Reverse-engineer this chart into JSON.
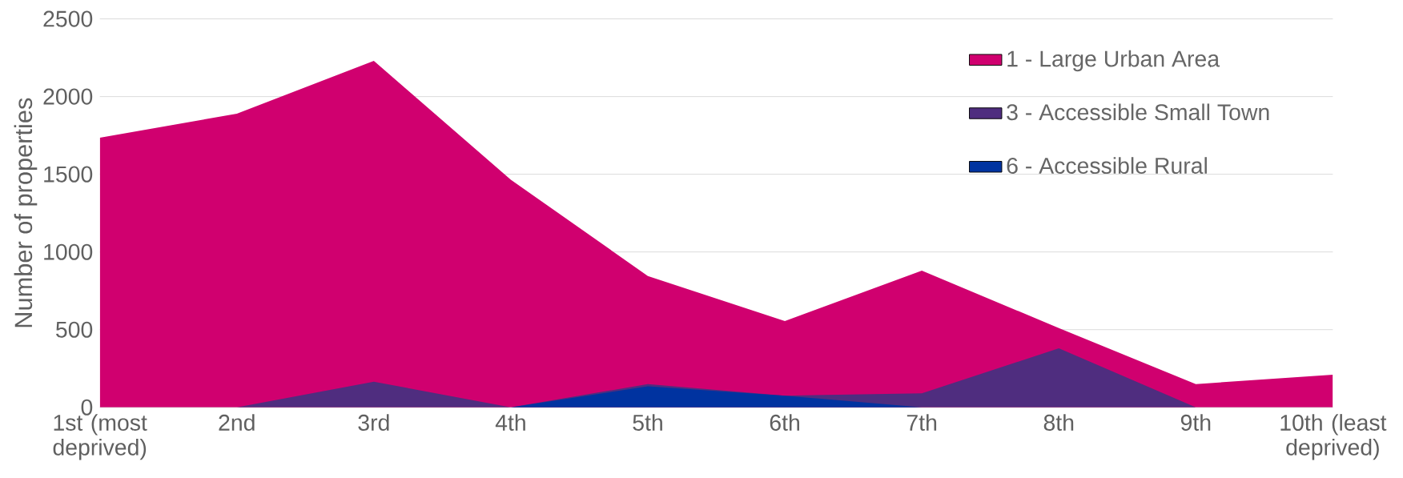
{
  "chart_data": {
    "type": "area",
    "ylabel": "Number of properties",
    "categories": [
      "1st (most deprived)",
      "2nd",
      "3rd",
      "4th",
      "5th",
      "6th",
      "7th",
      "8th",
      "9th",
      "10th (least deprived)"
    ],
    "series": [
      {
        "name": "1 - Large Urban Area",
        "color": "#d0006f",
        "values": [
          1735,
          1890,
          2230,
          1465,
          845,
          555,
          880,
          510,
          150,
          210
        ]
      },
      {
        "name": "3 - Accessible Small Town",
        "color": "#4f2d7f",
        "values": [
          0,
          0,
          165,
          0,
          150,
          75,
          90,
          380,
          0,
          0
        ]
      },
      {
        "name": "6 - Accessible Rural",
        "color": "#0033a0",
        "values": [
          0,
          0,
          0,
          0,
          135,
          75,
          0,
          0,
          0,
          0
        ]
      }
    ],
    "ylim": [
      0,
      2500
    ],
    "yticks": [
      0,
      500,
      1000,
      1500,
      2000,
      2500
    ],
    "grid": "y",
    "legend": "top right"
  }
}
